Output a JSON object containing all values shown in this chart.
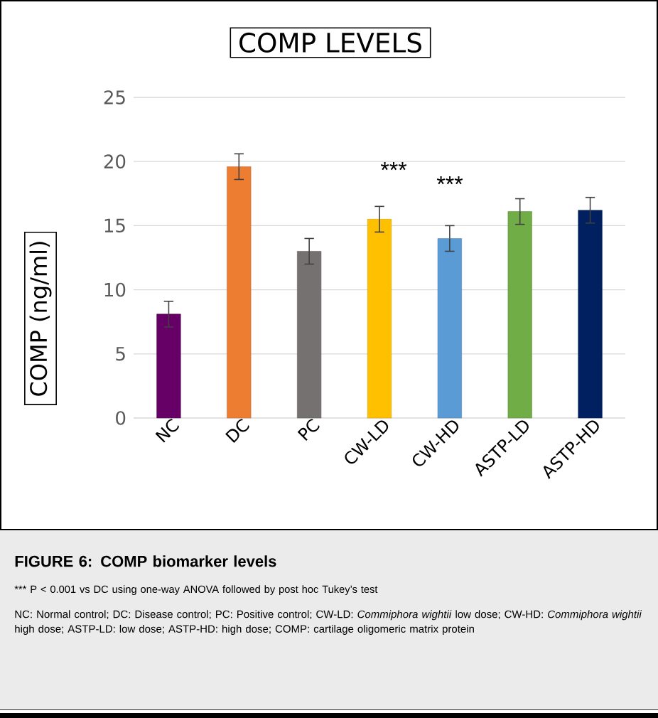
{
  "chart_data": {
    "type": "bar",
    "title": "COMP LEVELS",
    "ylabel": "COMP (ng/ml)",
    "categories": [
      "NC",
      "DC",
      "PC",
      "CW-LD",
      "CW-HD",
      "ASTP-LD",
      "ASTP-HD"
    ],
    "values": [
      8.1,
      19.6,
      13.0,
      15.5,
      14.0,
      16.1,
      16.2
    ],
    "errors": [
      1.0,
      1.0,
      1.0,
      1.0,
      1.0,
      1.0,
      1.0
    ],
    "colors": [
      "#660066",
      "#ed7d31",
      "#767171",
      "#ffc000",
      "#5b9bd5",
      "#70ad47",
      "#002060"
    ],
    "ylim": [
      0,
      25
    ],
    "yticks": [
      0,
      5,
      10,
      15,
      20,
      25
    ],
    "grid": "y",
    "annotations": [
      "***",
      "***",
      "FIGURE 6: COMP biomarker levels",
      "*** P < 0.001 vs DC using one-way ANOVA followed by post hoc Tukey’s test",
      "NC: Normal control; DC: Disease control; PC: Positive control; CW-LD: *Commiphora wightii* low dose; CW-HD: *Commiphora wightii* high dose; ASTP-LD: low dose; ASTP-HD: high dose; COMP: cartilage oligomeric matrix protein"
    ]
  }
}
